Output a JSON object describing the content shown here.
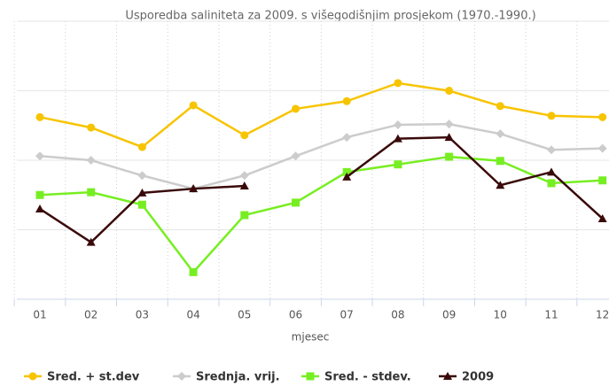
{
  "chart_data": {
    "type": "line",
    "title": "Usporedba saliniteta za 2009. s višegodišnjim prosjekom (1970.-1990.)",
    "x_label": "mjesec",
    "categories": [
      "01",
      "02",
      "03",
      "04",
      "05",
      "06",
      "07",
      "08",
      "09",
      "10",
      "11",
      "12"
    ],
    "series": [
      {
        "name": "Sred. + st.dev",
        "color": "#f7c400",
        "marker": "circle",
        "values": [
          2.62,
          2.47,
          2.19,
          2.79,
          2.36,
          2.74,
          2.85,
          3.11,
          3.0,
          2.78,
          2.64,
          2.62
        ]
      },
      {
        "name": "Srednja. vrij.",
        "color": "#cccccc",
        "marker": "diamond",
        "values": [
          2.06,
          2.0,
          1.78,
          1.59,
          1.78,
          2.06,
          2.33,
          2.51,
          2.52,
          2.38,
          2.15,
          2.17
        ]
      },
      {
        "name": "Sred. - stdev.",
        "color": "#77ee22",
        "marker": "square",
        "values": [
          1.5,
          1.54,
          1.36,
          0.39,
          1.21,
          1.39,
          1.83,
          1.94,
          2.05,
          1.99,
          1.67,
          1.71
        ]
      },
      {
        "name": "2009",
        "color": "#3a0a0a",
        "marker": "triangle",
        "values": [
          1.3,
          0.82,
          1.53,
          1.59,
          1.63,
          null,
          1.76,
          2.31,
          2.33,
          1.64,
          1.83,
          1.16
        ]
      }
    ],
    "ylim": [
      0,
      4
    ],
    "yticks": [
      0,
      1,
      2,
      3,
      4
    ],
    "grid": true
  }
}
